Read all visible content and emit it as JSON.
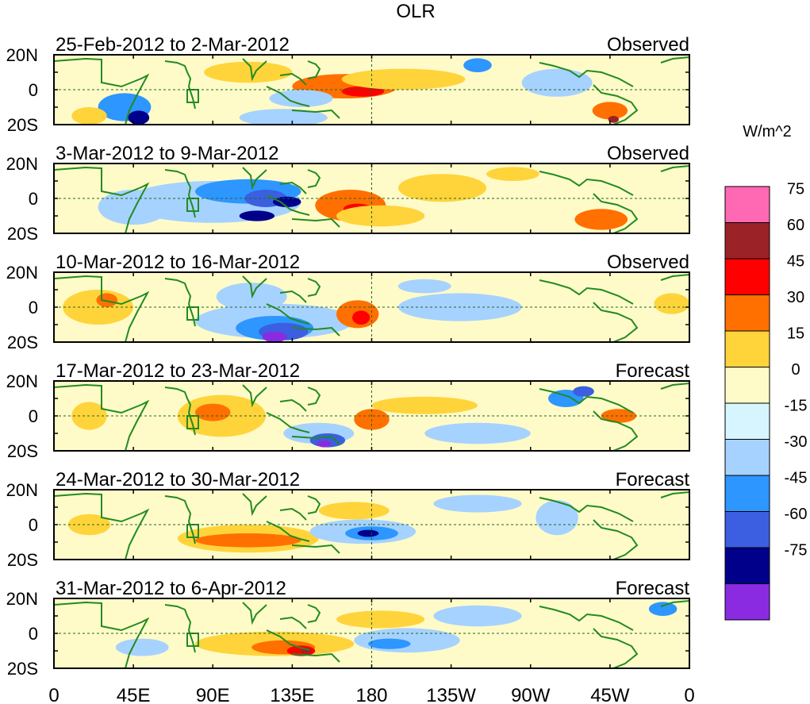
{
  "chart_data": {
    "type": "heatmap",
    "title": "OLR",
    "units": "W/m^2",
    "x_ticks": [
      "0",
      "45E",
      "90E",
      "135E",
      "180",
      "135W",
      "90W",
      "45W",
      "0"
    ],
    "y_ticks": [
      "20N",
      "0",
      "20S"
    ],
    "xlim_deg_east": [
      0,
      360
    ],
    "ylim_deg": [
      -20,
      20
    ],
    "colorbar": {
      "labels": [
        "75",
        "60",
        "45",
        "30",
        "15",
        "0",
        "-15",
        "-30",
        "-45",
        "-60",
        "-75"
      ],
      "colors": [
        "#ff69b4",
        "#9b2226",
        "#ff0000",
        "#ff7000",
        "#ffd43b",
        "#fffbc8",
        "#d6f5ff",
        "#a6d2ff",
        "#2d96ff",
        "#3b5fe0",
        "#00008b",
        "#8a2be2"
      ]
    },
    "panels": [
      {
        "period": "25-Feb-2012 to 2-Mar-2012",
        "status": "Observed",
        "features": [
          {
            "lon": 165,
            "lat": 2,
            "rx": 30,
            "ry": 7,
            "v": 30
          },
          {
            "lon": 175,
            "lat": -1,
            "rx": 12,
            "ry": 3,
            "v": 45
          },
          {
            "lon": 198,
            "lat": 6,
            "rx": 35,
            "ry": 6,
            "v": 15
          },
          {
            "lon": 110,
            "lat": 10,
            "rx": 25,
            "ry": 6,
            "v": 15
          },
          {
            "lon": 240,
            "lat": 14,
            "rx": 8,
            "ry": 4,
            "v": -30
          },
          {
            "lon": 315,
            "lat": -12,
            "rx": 10,
            "ry": 5,
            "v": 30
          },
          {
            "lon": 317,
            "lat": -17,
            "rx": 3,
            "ry": 2,
            "v": 60
          },
          {
            "lon": 40,
            "lat": -10,
            "rx": 15,
            "ry": 8,
            "v": -30
          },
          {
            "lon": 48,
            "lat": -16,
            "rx": 6,
            "ry": 4,
            "v": -60
          },
          {
            "lon": 130,
            "lat": -16,
            "rx": 25,
            "ry": 5,
            "v": -15
          },
          {
            "lon": 140,
            "lat": -5,
            "rx": 18,
            "ry": 5,
            "v": -15
          },
          {
            "lon": 285,
            "lat": 4,
            "rx": 20,
            "ry": 8,
            "v": -15
          },
          {
            "lon": 20,
            "lat": -15,
            "rx": 10,
            "ry": 5,
            "v": 15
          }
        ]
      },
      {
        "period": "3-Mar-2012 to 9-Mar-2012",
        "status": "Observed",
        "features": [
          {
            "lon": 90,
            "lat": -2,
            "rx": 50,
            "ry": 12,
            "v": -15
          },
          {
            "lon": 110,
            "lat": 4,
            "rx": 30,
            "ry": 7,
            "v": -30
          },
          {
            "lon": 120,
            "lat": 0,
            "rx": 12,
            "ry": 5,
            "v": -45
          },
          {
            "lon": 132,
            "lat": -2,
            "rx": 8,
            "ry": 3,
            "v": -60
          },
          {
            "lon": 115,
            "lat": -10,
            "rx": 10,
            "ry": 3,
            "v": -60
          },
          {
            "lon": 168,
            "lat": -4,
            "rx": 20,
            "ry": 9,
            "v": 30
          },
          {
            "lon": 172,
            "lat": -6,
            "rx": 8,
            "ry": 3,
            "v": 45
          },
          {
            "lon": 185,
            "lat": -10,
            "rx": 25,
            "ry": 6,
            "v": 15
          },
          {
            "lon": 220,
            "lat": 6,
            "rx": 25,
            "ry": 8,
            "v": 15
          },
          {
            "lon": 310,
            "lat": -12,
            "rx": 15,
            "ry": 6,
            "v": 30
          },
          {
            "lon": 45,
            "lat": -5,
            "rx": 20,
            "ry": 10,
            "v": -15
          },
          {
            "lon": 260,
            "lat": 14,
            "rx": 15,
            "ry": 4,
            "v": 15
          }
        ]
      },
      {
        "period": "10-Mar-2012 to 16-Mar-2012",
        "status": "Observed",
        "features": [
          {
            "lon": 125,
            "lat": -8,
            "rx": 45,
            "ry": 10,
            "v": -15
          },
          {
            "lon": 125,
            "lat": -12,
            "rx": 22,
            "ry": 7,
            "v": -30
          },
          {
            "lon": 130,
            "lat": -14,
            "rx": 14,
            "ry": 5,
            "v": -45
          },
          {
            "lon": 125,
            "lat": -17,
            "rx": 7,
            "ry": 3,
            "v": -75
          },
          {
            "lon": 112,
            "lat": 6,
            "rx": 20,
            "ry": 8,
            "v": -15
          },
          {
            "lon": 172,
            "lat": -4,
            "rx": 12,
            "ry": 8,
            "v": 30
          },
          {
            "lon": 174,
            "lat": -6,
            "rx": 5,
            "ry": 4,
            "v": 45
          },
          {
            "lon": 25,
            "lat": 0,
            "rx": 20,
            "ry": 10,
            "v": 15
          },
          {
            "lon": 30,
            "lat": 4,
            "rx": 6,
            "ry": 4,
            "v": 30
          },
          {
            "lon": 230,
            "lat": 0,
            "rx": 35,
            "ry": 8,
            "v": -15
          },
          {
            "lon": 210,
            "lat": 12,
            "rx": 15,
            "ry": 4,
            "v": -15
          },
          {
            "lon": 350,
            "lat": 2,
            "rx": 10,
            "ry": 6,
            "v": 15
          }
        ]
      },
      {
        "period": "17-Mar-2012 to 23-Mar-2012",
        "status": "Forecast",
        "features": [
          {
            "lon": 95,
            "lat": 0,
            "rx": 25,
            "ry": 12,
            "v": 15
          },
          {
            "lon": 90,
            "lat": 2,
            "rx": 10,
            "ry": 5,
            "v": 30
          },
          {
            "lon": 150,
            "lat": -10,
            "rx": 20,
            "ry": 6,
            "v": -15
          },
          {
            "lon": 155,
            "lat": -14,
            "rx": 10,
            "ry": 4,
            "v": -45
          },
          {
            "lon": 153,
            "lat": -16,
            "rx": 4,
            "ry": 2,
            "v": -75
          },
          {
            "lon": 180,
            "lat": -2,
            "rx": 10,
            "ry": 6,
            "v": 30
          },
          {
            "lon": 210,
            "lat": 6,
            "rx": 30,
            "ry": 5,
            "v": 15
          },
          {
            "lon": 290,
            "lat": 10,
            "rx": 10,
            "ry": 5,
            "v": -30
          },
          {
            "lon": 300,
            "lat": 14,
            "rx": 6,
            "ry": 3,
            "v": -45
          },
          {
            "lon": 320,
            "lat": 0,
            "rx": 10,
            "ry": 4,
            "v": 30
          },
          {
            "lon": 20,
            "lat": 0,
            "rx": 10,
            "ry": 8,
            "v": 15
          },
          {
            "lon": 240,
            "lat": -10,
            "rx": 30,
            "ry": 6,
            "v": -15
          }
        ]
      },
      {
        "period": "24-Mar-2012 to 30-Mar-2012",
        "status": "Forecast",
        "features": [
          {
            "lon": 110,
            "lat": -8,
            "rx": 40,
            "ry": 8,
            "v": 15
          },
          {
            "lon": 110,
            "lat": -9,
            "rx": 30,
            "ry": 4,
            "v": 30
          },
          {
            "lon": 175,
            "lat": -4,
            "rx": 30,
            "ry": 7,
            "v": -15
          },
          {
            "lon": 180,
            "lat": -5,
            "rx": 15,
            "ry": 4,
            "v": -30
          },
          {
            "lon": 178,
            "lat": -5,
            "rx": 6,
            "ry": 2,
            "v": -60
          },
          {
            "lon": 240,
            "lat": 12,
            "rx": 25,
            "ry": 5,
            "v": -15
          },
          {
            "lon": 170,
            "lat": 8,
            "rx": 20,
            "ry": 5,
            "v": 15
          },
          {
            "lon": 285,
            "lat": 4,
            "rx": 12,
            "ry": 10,
            "v": -15
          },
          {
            "lon": 20,
            "lat": 0,
            "rx": 12,
            "ry": 6,
            "v": 15
          }
        ]
      },
      {
        "period": "31-Mar-2012 to 6-Apr-2012",
        "status": "Forecast",
        "features": [
          {
            "lon": 125,
            "lat": -6,
            "rx": 45,
            "ry": 7,
            "v": 15
          },
          {
            "lon": 130,
            "lat": -8,
            "rx": 18,
            "ry": 4,
            "v": 30
          },
          {
            "lon": 140,
            "lat": -10,
            "rx": 8,
            "ry": 3,
            "v": 45
          },
          {
            "lon": 143,
            "lat": -10,
            "rx": 3,
            "ry": 1.5,
            "v": 60
          },
          {
            "lon": 200,
            "lat": -4,
            "rx": 30,
            "ry": 7,
            "v": -15
          },
          {
            "lon": 190,
            "lat": -6,
            "rx": 12,
            "ry": 3,
            "v": -30
          },
          {
            "lon": 185,
            "lat": 8,
            "rx": 25,
            "ry": 5,
            "v": 15
          },
          {
            "lon": 240,
            "lat": 10,
            "rx": 25,
            "ry": 6,
            "v": -15
          },
          {
            "lon": 345,
            "lat": 14,
            "rx": 8,
            "ry": 4,
            "v": -30
          },
          {
            "lon": 50,
            "lat": -8,
            "rx": 15,
            "ry": 5,
            "v": -15
          }
        ]
      }
    ]
  }
}
